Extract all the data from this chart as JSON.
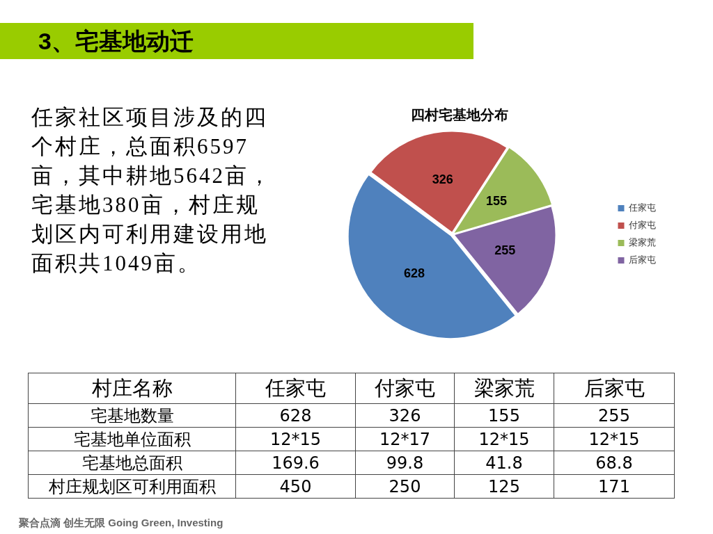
{
  "chart_data": [
    {
      "type": "other",
      "title": "3、宅基地动迁",
      "annotations": [
        "任家社区项目涉及的四个村庄，总面积6597亩，其中耕地5642亩，宅基地380亩，村庄规划区内可利用建设用地面积共1049亩。",
        "聚合点滴 创生无限 Going Green, Investing"
      ]
    },
    {
      "type": "pie",
      "title": "四村宅基地分布",
      "categories": [
        "任家屯",
        "付家屯",
        "梁家荒",
        "后家屯"
      ],
      "values": [
        628,
        326,
        155,
        255
      ],
      "colors": [
        "#4f81bd",
        "#c0504d",
        "#9bbb59",
        "#8064a2"
      ],
      "data_labels": true,
      "legend": "right"
    },
    {
      "type": "other",
      "xlabel": "村庄名称",
      "categories": [
        "任家屯",
        "付家屯",
        "梁家荒",
        "后家屯"
      ],
      "y_categories": [
        "宅基地数量",
        "宅基地单位面积",
        "宅基地总面积",
        "村庄规划区可利用面积"
      ],
      "cell_labels": [
        [
          "628",
          "326",
          "155",
          "255"
        ],
        [
          "12*15",
          "12*17",
          "12*15",
          "12*15"
        ],
        [
          "169.6",
          "99.8",
          "41.8",
          "68.8"
        ],
        [
          "450",
          "250",
          "125",
          "171"
        ]
      ]
    }
  ]
}
